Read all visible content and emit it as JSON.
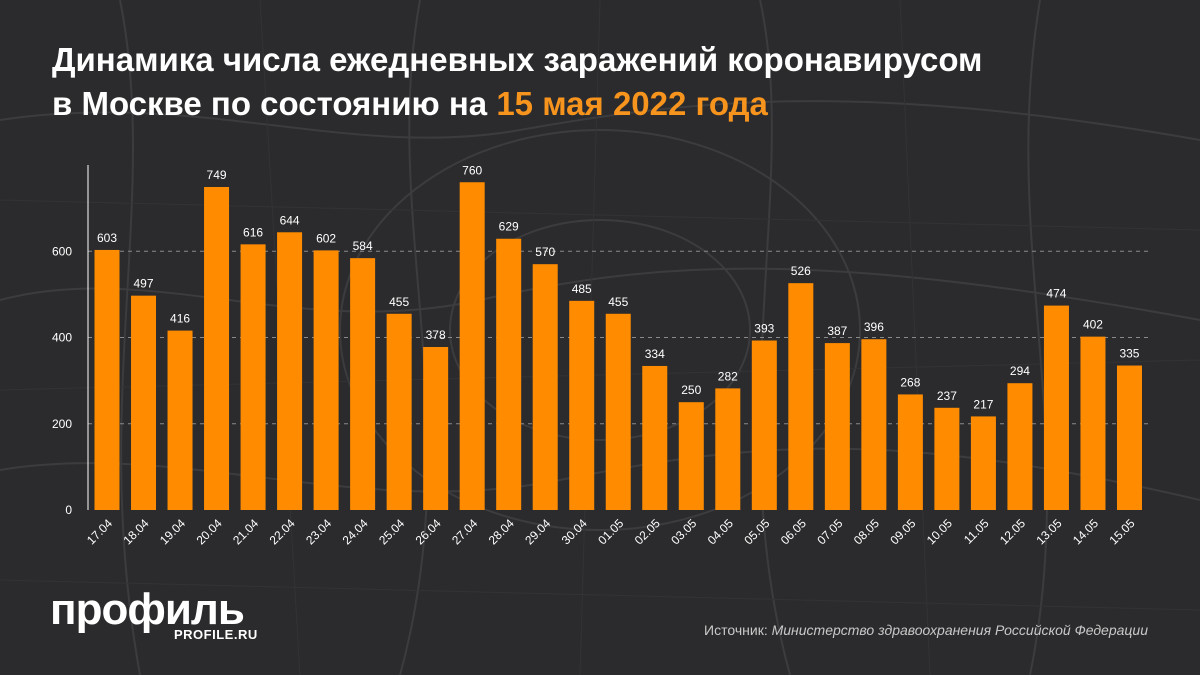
{
  "title": {
    "line1": "Динамика числа ежедневных заражений коронавирусом",
    "line2_prefix": "в Москве по состоянию на ",
    "line2_accent": "15 мая 2022 года"
  },
  "logo": {
    "name": "профиль",
    "url": "PROFILE.RU"
  },
  "source": {
    "label": "Источник: ",
    "value": "Министерство здравоохранения Российской Федерации"
  },
  "colors": {
    "background": "#2b2b2d",
    "bar": "#ff8c00",
    "accent": "#f7941d",
    "text": "#ffffff",
    "grid": "#8a8a8a"
  },
  "chart_data": {
    "type": "bar",
    "title": "Динамика числа ежедневных заражений коронавирусом в Москве по состоянию на 15 мая 2022 года",
    "xlabel": "",
    "ylabel": "",
    "ylim": [
      0,
      800
    ],
    "yticks": [
      0,
      200,
      400,
      600
    ],
    "grid": "horizontal dashed",
    "legend": "none",
    "categories": [
      "17.04",
      "18.04",
      "19.04",
      "20.04",
      "21.04",
      "22.04",
      "23.04",
      "24.04",
      "25.04",
      "26.04",
      "27.04",
      "28.04",
      "29.04",
      "30.04",
      "01.05",
      "02.05",
      "03.05",
      "04.05",
      "05.05",
      "06.05",
      "07.05",
      "08.05",
      "09.05",
      "10.05",
      "11.05",
      "12.05",
      "13.05",
      "14.05",
      "15.05"
    ],
    "values": [
      603,
      497,
      416,
      749,
      616,
      644,
      602,
      584,
      455,
      378,
      760,
      629,
      570,
      485,
      455,
      334,
      250,
      282,
      393,
      526,
      387,
      396,
      268,
      237,
      217,
      294,
      474,
      402,
      335
    ]
  }
}
